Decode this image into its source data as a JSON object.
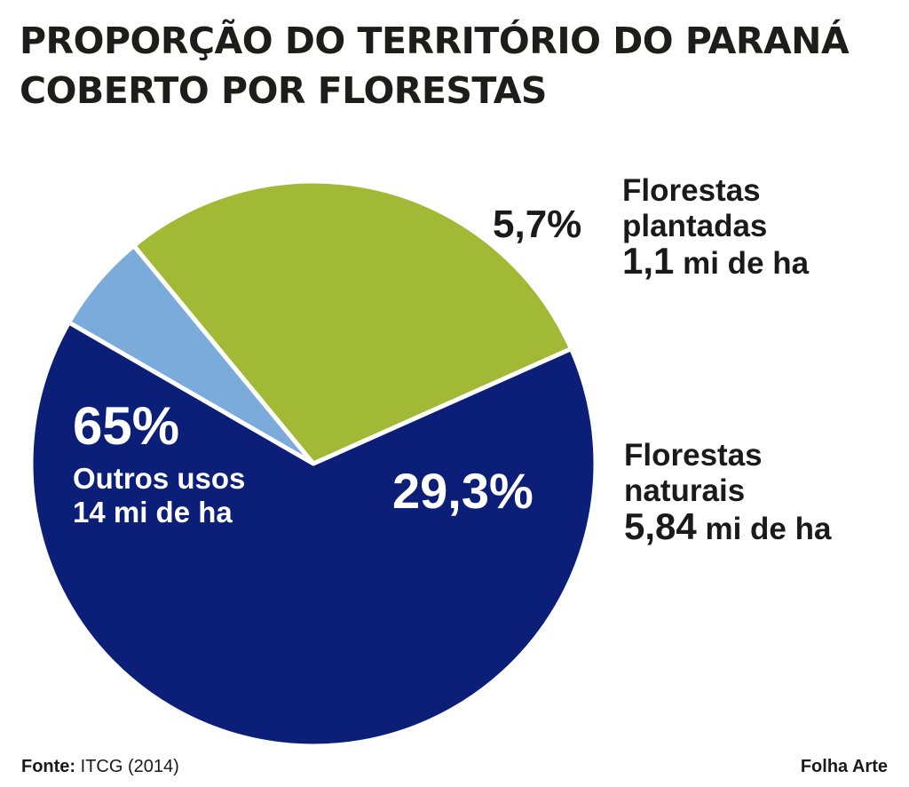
{
  "title_lines": [
    "PROPORÇÃO DO TERRITÓRIO DO PARANÁ",
    "COBERTO POR FLORESTAS"
  ],
  "chart_data": {
    "type": "pie",
    "title": "PROPORÇÃO DO TERRITÓRIO DO PARANÁ COBERTO POR FLORESTAS",
    "slices": [
      {
        "name": "Florestas plantadas",
        "percent_label": "5,7%",
        "value": 5.7,
        "area_value": "1,1",
        "area_unit": "mi de ha",
        "color": "#7aabdb"
      },
      {
        "name": "Florestas naturais",
        "percent_label": "29,3%",
        "value": 29.3,
        "area_value": "5,84",
        "area_unit": "mi de ha",
        "color": "#a2b935"
      },
      {
        "name": "Outros usos",
        "percent_label": "65%",
        "value": 65,
        "area_value": "14",
        "area_unit": "mi de ha",
        "color": "#0b1f78"
      }
    ],
    "separator_color": "#ffffff"
  },
  "labels": {
    "plantadas": {
      "line1": "Florestas",
      "line2": "plantadas",
      "line3_num": "1,1",
      "line3_unit": " mi de ha"
    },
    "naturais": {
      "line1": "Florestas",
      "line2": "naturais",
      "line3_num": "5,84",
      "line3_unit": " mi de ha"
    },
    "outros": {
      "line1": "Outros usos",
      "line2": "14 mi de ha"
    }
  },
  "footer": {
    "source_label": "Fonte:",
    "source_value": " ITCG (2014)",
    "credit": "Folha Arte"
  }
}
